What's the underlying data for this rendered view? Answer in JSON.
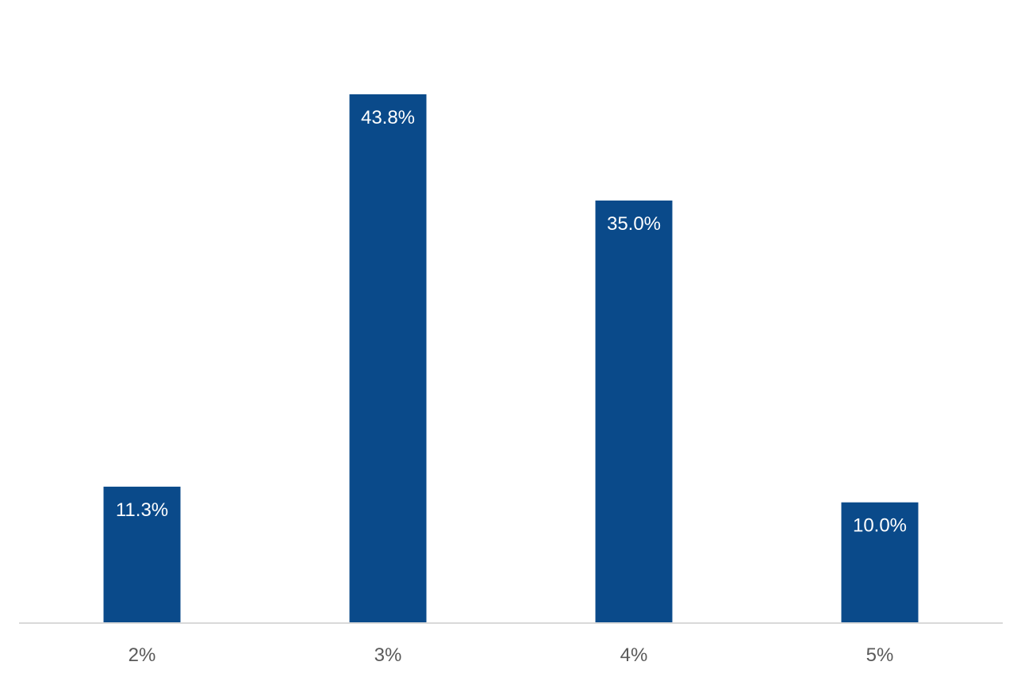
{
  "chart_data": {
    "type": "bar",
    "title": "",
    "xlabel": "",
    "ylabel": "",
    "categories": [
      "2%",
      "3%",
      "4%",
      "5%"
    ],
    "values": [
      11.3,
      43.8,
      35.0,
      10.0
    ],
    "data_labels": [
      "11.3%",
      "43.8%",
      "35.0%",
      "10.0%"
    ],
    "ylim": [
      0,
      50
    ],
    "grid": false,
    "legend": "none",
    "bar_color": "#0a4a8a",
    "axis_color": "#d9d9d9",
    "tick_label_color": "#595959",
    "data_label_color": "#ffffff"
  }
}
